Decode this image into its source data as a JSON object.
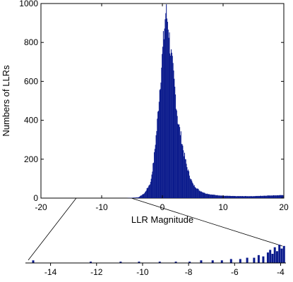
{
  "chart_data": [
    {
      "type": "bar",
      "title": "",
      "xlabel": "LLR Magnitude",
      "ylabel": "Numbers of LLRs",
      "xlim": [
        -20,
        20
      ],
      "ylim": [
        0,
        1000
      ],
      "xticks": [
        "-20",
        "-10",
        "0",
        "10",
        "20"
      ],
      "yticks": [
        "0",
        "200",
        "400",
        "600",
        "800",
        "1000"
      ],
      "grid": false,
      "bar_color": "#0a1a8c",
      "x": [
        -4.0,
        -3.0,
        -2.0,
        -1.5,
        -1.0,
        -0.5,
        0.0,
        0.3,
        0.5,
        0.7,
        0.9,
        1.1,
        1.3,
        1.6,
        2.0,
        2.5,
        3.0,
        3.5,
        4.0,
        4.5,
        5.0,
        6.0,
        7.0,
        8.0,
        10.0,
        12.0,
        15.0,
        18.0,
        20.0
      ],
      "values": [
        4,
        25,
        80,
        190,
        350,
        560,
        760,
        880,
        960,
        930,
        900,
        820,
        760,
        680,
        560,
        400,
        320,
        230,
        160,
        110,
        70,
        40,
        25,
        18,
        12,
        10,
        10,
        14,
        15
      ]
    },
    {
      "type": "bar",
      "title": "",
      "xlabel": "",
      "ylabel": "",
      "xlim": [
        -15,
        -3.8
      ],
      "xticks": [
        "-14",
        "-12",
        "-10",
        "-8",
        "-6",
        "-4"
      ],
      "grid": false,
      "bar_color": "#0a1a8c",
      "x": [
        -14.8,
        -12.3,
        -11.0,
        -10.2,
        -9.3,
        -8.6,
        -8.0,
        -7.5,
        -7.0,
        -6.6,
        -6.2,
        -5.8,
        -5.5,
        -5.2,
        -5.0,
        -4.8,
        -4.6,
        -4.5,
        -4.4,
        -4.3,
        -4.2,
        -4.1,
        -4.0,
        -3.9
      ],
      "values": [
        2,
        1,
        1,
        1,
        1,
        1,
        1,
        2,
        2,
        2,
        3,
        3,
        4,
        4,
        6,
        5,
        8,
        10,
        7,
        12,
        9,
        14,
        11,
        13
      ]
    }
  ]
}
